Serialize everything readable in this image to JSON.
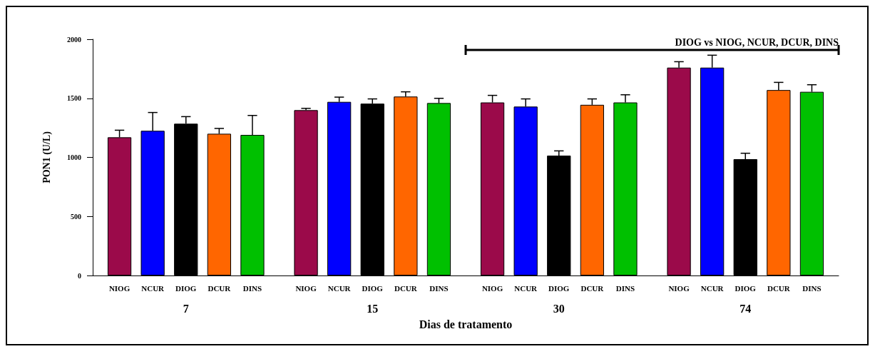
{
  "chart_data": {
    "type": "bar",
    "xlabel": "Dias de tratamento",
    "ylabel": "PON1 (U/L)",
    "categories": [
      "7",
      "15",
      "30",
      "74"
    ],
    "series": [
      {
        "name": "NIOG",
        "color": "#9b0a4a",
        "values": [
          1170,
          1400,
          1465,
          1760
        ],
        "errors": [
          [
            1170,
            1230
          ],
          [
            1400,
            1415
          ],
          [
            1465,
            1525
          ],
          [
            1760,
            1810
          ]
        ]
      },
      {
        "name": "NCUR",
        "color": "#0000ff",
        "values": [
          1225,
          1470,
          1430,
          1760
        ],
        "errors": [
          [
            1225,
            1380
          ],
          [
            1470,
            1510
          ],
          [
            1430,
            1495
          ],
          [
            1760,
            1865
          ]
        ]
      },
      {
        "name": "DIOG",
        "color": "#000000",
        "values": [
          1285,
          1455,
          1015,
          985
        ],
        "errors": [
          [
            1285,
            1345
          ],
          [
            1455,
            1495
          ],
          [
            1015,
            1055
          ],
          [
            985,
            1035
          ]
        ]
      },
      {
        "name": "DCUR",
        "color": "#ff6600",
        "values": [
          1200,
          1515,
          1445,
          1570
        ],
        "errors": [
          [
            1200,
            1245
          ],
          [
            1515,
            1555
          ],
          [
            1445,
            1495
          ],
          [
            1570,
            1635
          ]
        ]
      },
      {
        "name": "DINS",
        "color": "#00c000",
        "values": [
          1190,
          1460,
          1465,
          1555
        ],
        "errors": [
          [
            1190,
            1355
          ],
          [
            1460,
            1500
          ],
          [
            1465,
            1530
          ],
          [
            1555,
            1615
          ]
        ]
      }
    ],
    "ylim": [
      0,
      2000
    ],
    "yticks": [
      0,
      500,
      1000,
      1500,
      2000
    ],
    "annotations": [
      "DIOG vs NIOG, NCUR, DCUR, DINS"
    ]
  }
}
